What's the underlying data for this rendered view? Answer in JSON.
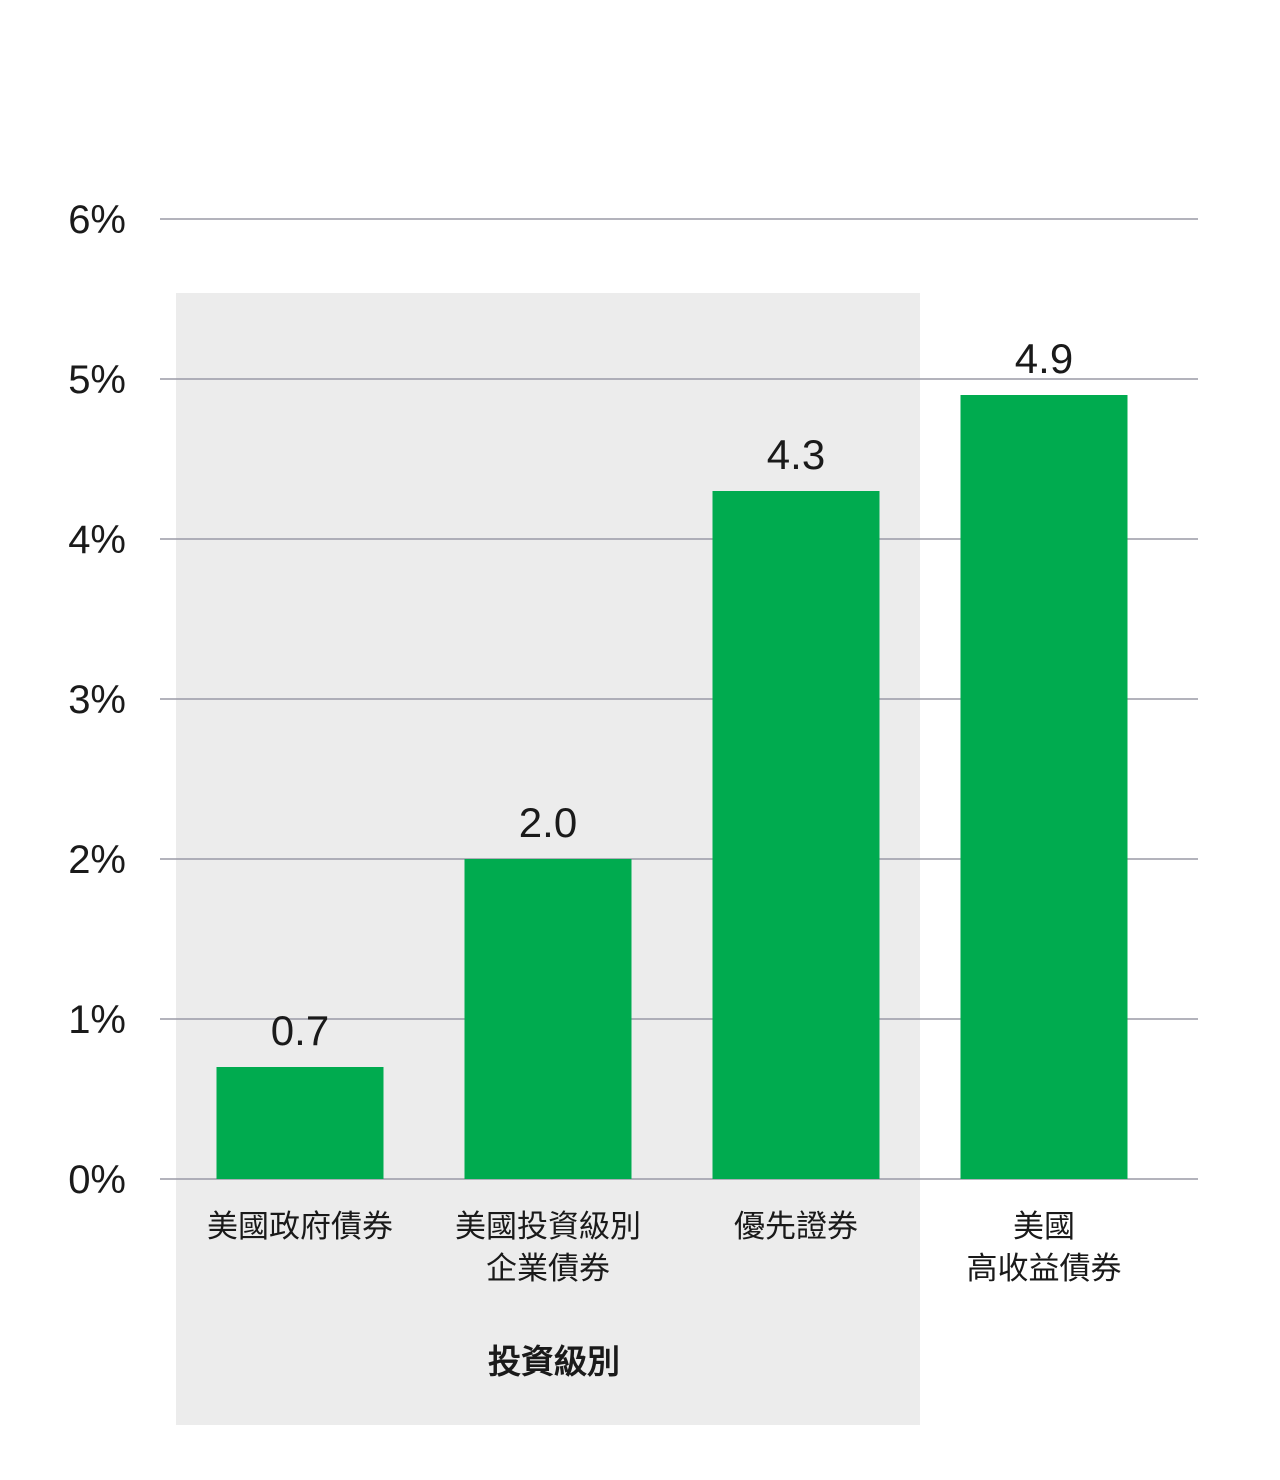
{
  "chart_data": {
    "type": "bar",
    "categories": [
      [
        "美國政府債券"
      ],
      [
        "美國投資級別",
        "企業債券"
      ],
      [
        "優先證券"
      ],
      [
        "美國",
        "高收益債券"
      ]
    ],
    "values": [
      0.7,
      2.0,
      4.3,
      4.9
    ],
    "value_labels": [
      "0.7",
      "2.0",
      "4.3",
      "4.9"
    ],
    "y_ticks": [
      0,
      1,
      2,
      3,
      4,
      5,
      6
    ],
    "y_tick_labels": [
      "0%",
      "1%",
      "2%",
      "3%",
      "4%",
      "5%",
      "6%"
    ],
    "ylim": [
      0,
      6
    ],
    "grid": true,
    "title": "",
    "xlabel": "",
    "ylabel": "",
    "group": {
      "label": "投資級別",
      "category_indices": [
        0,
        1,
        2
      ]
    },
    "colors": {
      "bar": "#00AB4F",
      "grid": "#9a9aa6",
      "group_shade": "#ececec",
      "text": "#1a1a1a"
    }
  }
}
